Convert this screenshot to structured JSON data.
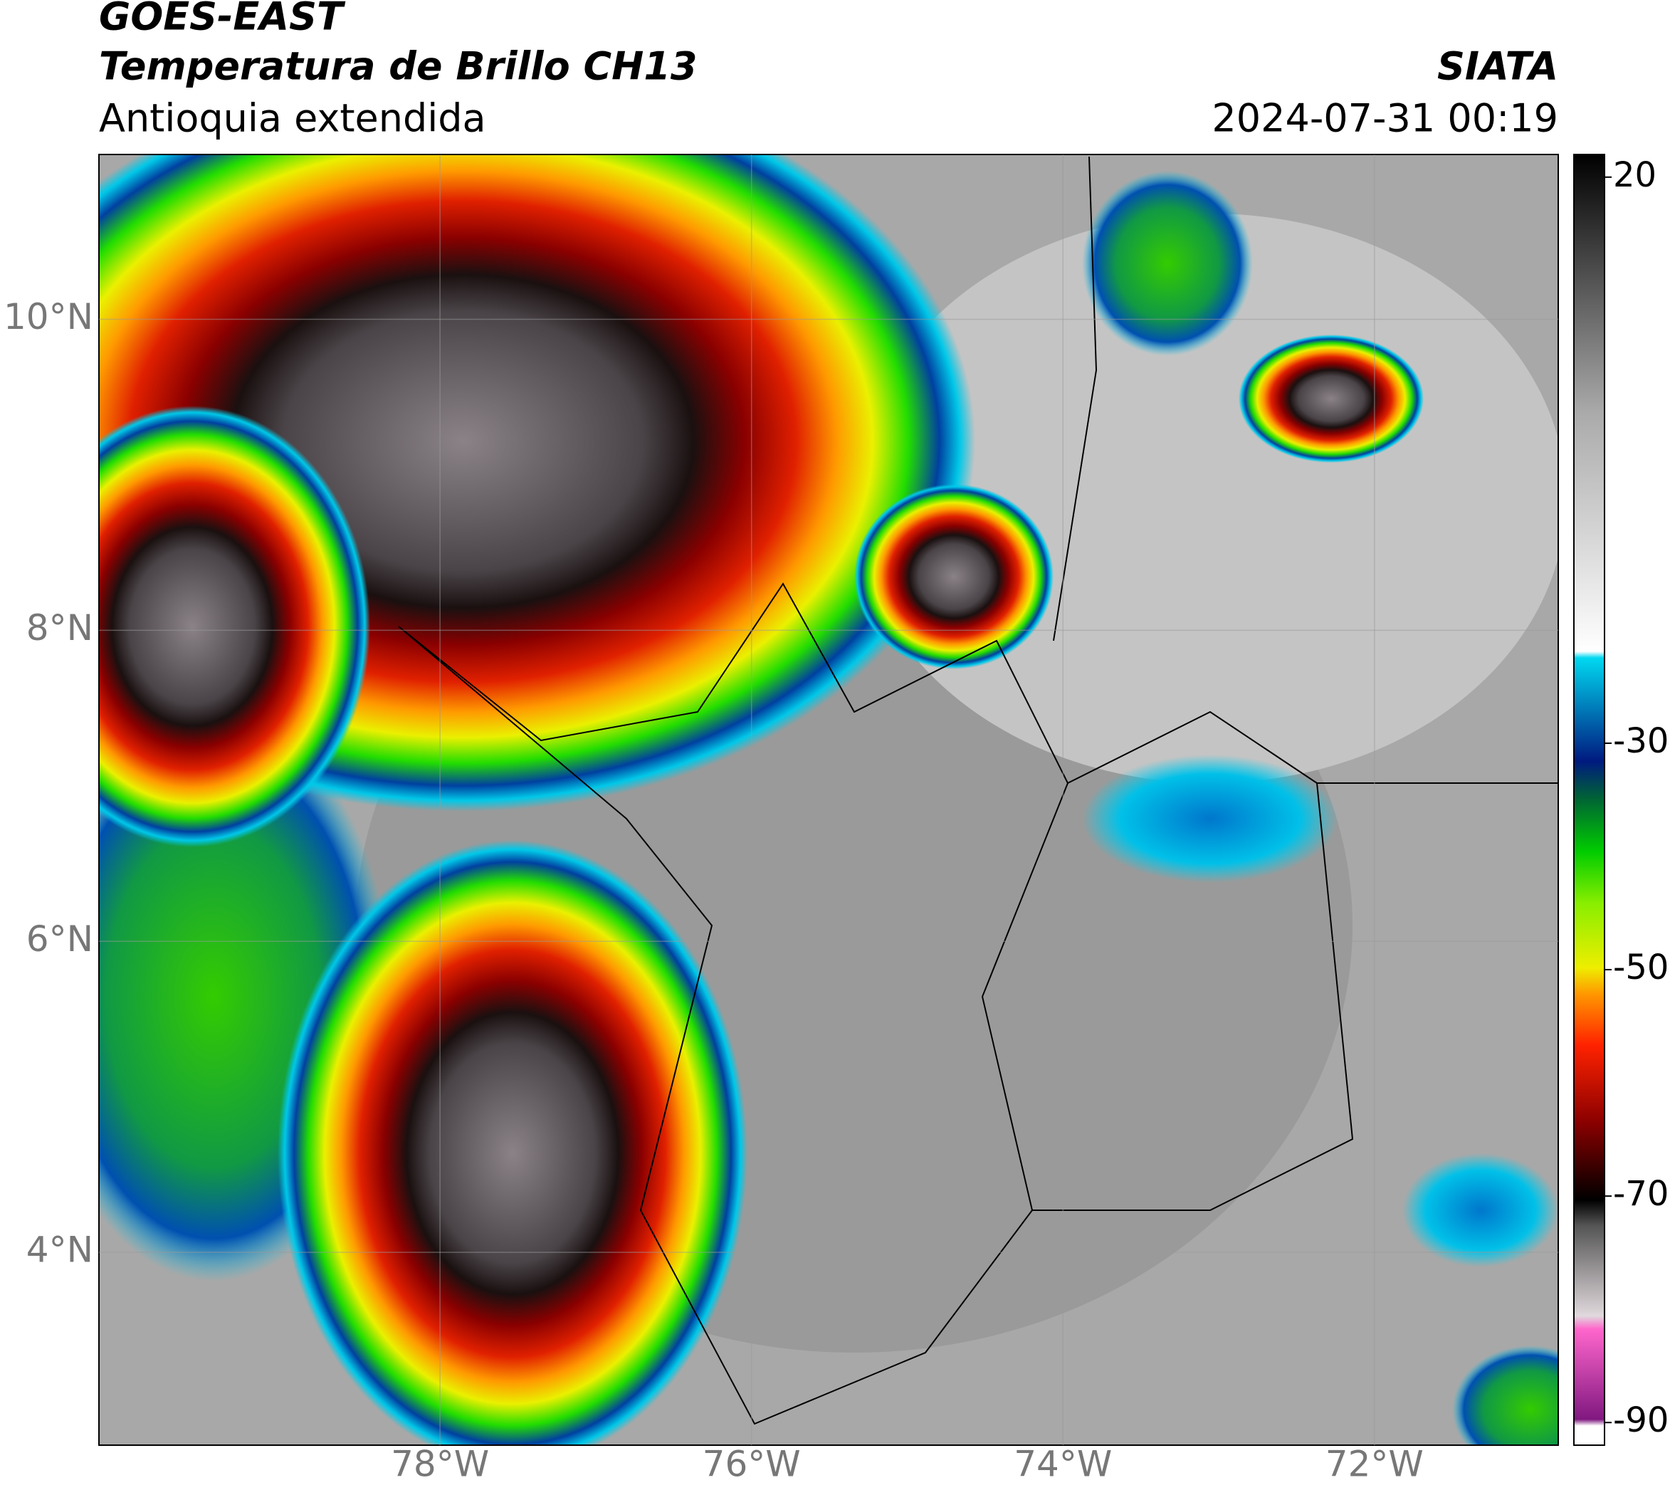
{
  "header": {
    "title": "GOES-EAST",
    "subtitle": "Temperatura de Brillo CH13",
    "region": "Antioquia extendida",
    "source": "SIATA",
    "datetime": "2024-07-31 00:19"
  },
  "map": {
    "latlim": [
      2.76,
      11.06
    ],
    "lonlim": [
      -80.19,
      -70.82
    ],
    "lat_ticks": [
      {
        "value": 10,
        "label": "10°N"
      },
      {
        "value": 8,
        "label": "8°N"
      },
      {
        "value": 6,
        "label": "6°N"
      },
      {
        "value": 4,
        "label": "4°N"
      }
    ],
    "lon_ticks": [
      {
        "value": -78,
        "label": "78°W"
      },
      {
        "value": -76,
        "label": "76°W"
      },
      {
        "value": -74,
        "label": "74°W"
      },
      {
        "value": -72,
        "label": "72°W"
      }
    ]
  },
  "colorbar": {
    "lim": [
      -92,
      22
    ],
    "ticks": [
      20,
      -30,
      -50,
      -70,
      -90
    ]
  }
}
